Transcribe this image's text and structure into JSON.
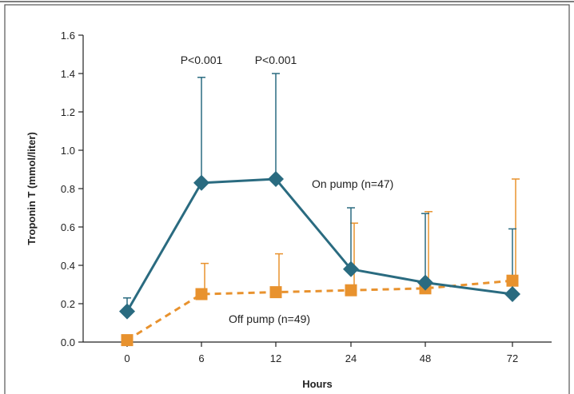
{
  "chart_data": {
    "type": "line",
    "title": "",
    "xlabel": "Hours",
    "ylabel": "Troponin T (mmol/liter)",
    "categories": [
      "0",
      "6",
      "12",
      "24",
      "48",
      "72"
    ],
    "ylim": [
      0,
      1.6
    ],
    "yticks": [
      "0.0",
      "0.2",
      "0.4",
      "0.6",
      "0.8",
      "1.0",
      "1.2",
      "1.4",
      "1.6"
    ],
    "grid": false,
    "series": [
      {
        "name": "On pump (n=47)",
        "color": "#2a6b80",
        "marker": "diamond",
        "line": "solid",
        "values": [
          0.16,
          0.83,
          0.85,
          0.38,
          0.31,
          0.25
        ],
        "error_upper": [
          0.23,
          1.38,
          1.4,
          0.7,
          0.67,
          0.59
        ]
      },
      {
        "name": "Off pump (n=49)",
        "color": "#e8922e",
        "marker": "square",
        "line": "dashed",
        "values": [
          0.01,
          0.25,
          0.26,
          0.27,
          0.28,
          0.32
        ],
        "error_upper": [
          null,
          0.41,
          0.46,
          0.62,
          0.68,
          0.85
        ]
      }
    ],
    "annotations": [
      {
        "text": "P<0.001",
        "category": "6",
        "y": 1.47
      },
      {
        "text": "P<0.001",
        "category": "12",
        "y": 1.47
      }
    ]
  }
}
